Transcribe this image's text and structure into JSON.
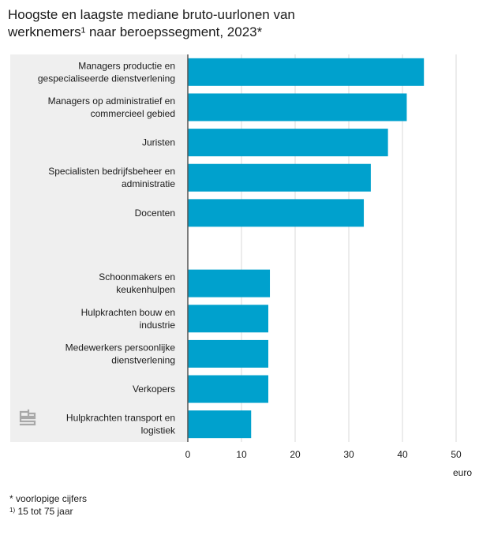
{
  "title": {
    "line1": "Hoogste en laagste mediane bruto-uurlonen van",
    "line2": "werknemers¹ naar beroepssegment, 2023*"
  },
  "chart_data": {
    "type": "bar",
    "orientation": "horizontal",
    "title": "Hoogste en laagste mediane bruto-uurlonen van werknemers¹ naar beroepssegment, 2023*",
    "xlabel": "euro",
    "ylabel": "",
    "xlim": [
      0,
      50
    ],
    "xticks": [
      0,
      10,
      20,
      30,
      40,
      50
    ],
    "grid": true,
    "bar_color": "#00a1cd",
    "panel_color": "#efefef",
    "categories": [
      [
        "Managers productie en",
        "gespecialiseerde dienstverlening"
      ],
      [
        "Managers op administratief en",
        "commercieel gebied"
      ],
      [
        "Juristen"
      ],
      [
        "Specialisten bedrijfsbeheer en",
        "administratie"
      ],
      [
        "Docenten"
      ],
      [],
      [
        "Schoonmakers en",
        "keukenhulpen"
      ],
      [
        "Hulpkrachten bouw en",
        "industrie"
      ],
      [
        "Medewerkers persoonlijke",
        "dienstverlening"
      ],
      [
        "Verkopers"
      ],
      [
        "Hulpkrachten transport en",
        "logistiek"
      ]
    ],
    "values": [
      44.0,
      40.8,
      37.3,
      34.1,
      32.8,
      null,
      15.3,
      15.0,
      15.0,
      15.0,
      11.8
    ]
  },
  "logo": {
    "name": "cbs-logo",
    "text": "cbs"
  },
  "footnotes": {
    "note1": "* voorlopige cijfers",
    "note2_marker": "1)",
    "note2_text": " 15 tot 75 jaar"
  }
}
